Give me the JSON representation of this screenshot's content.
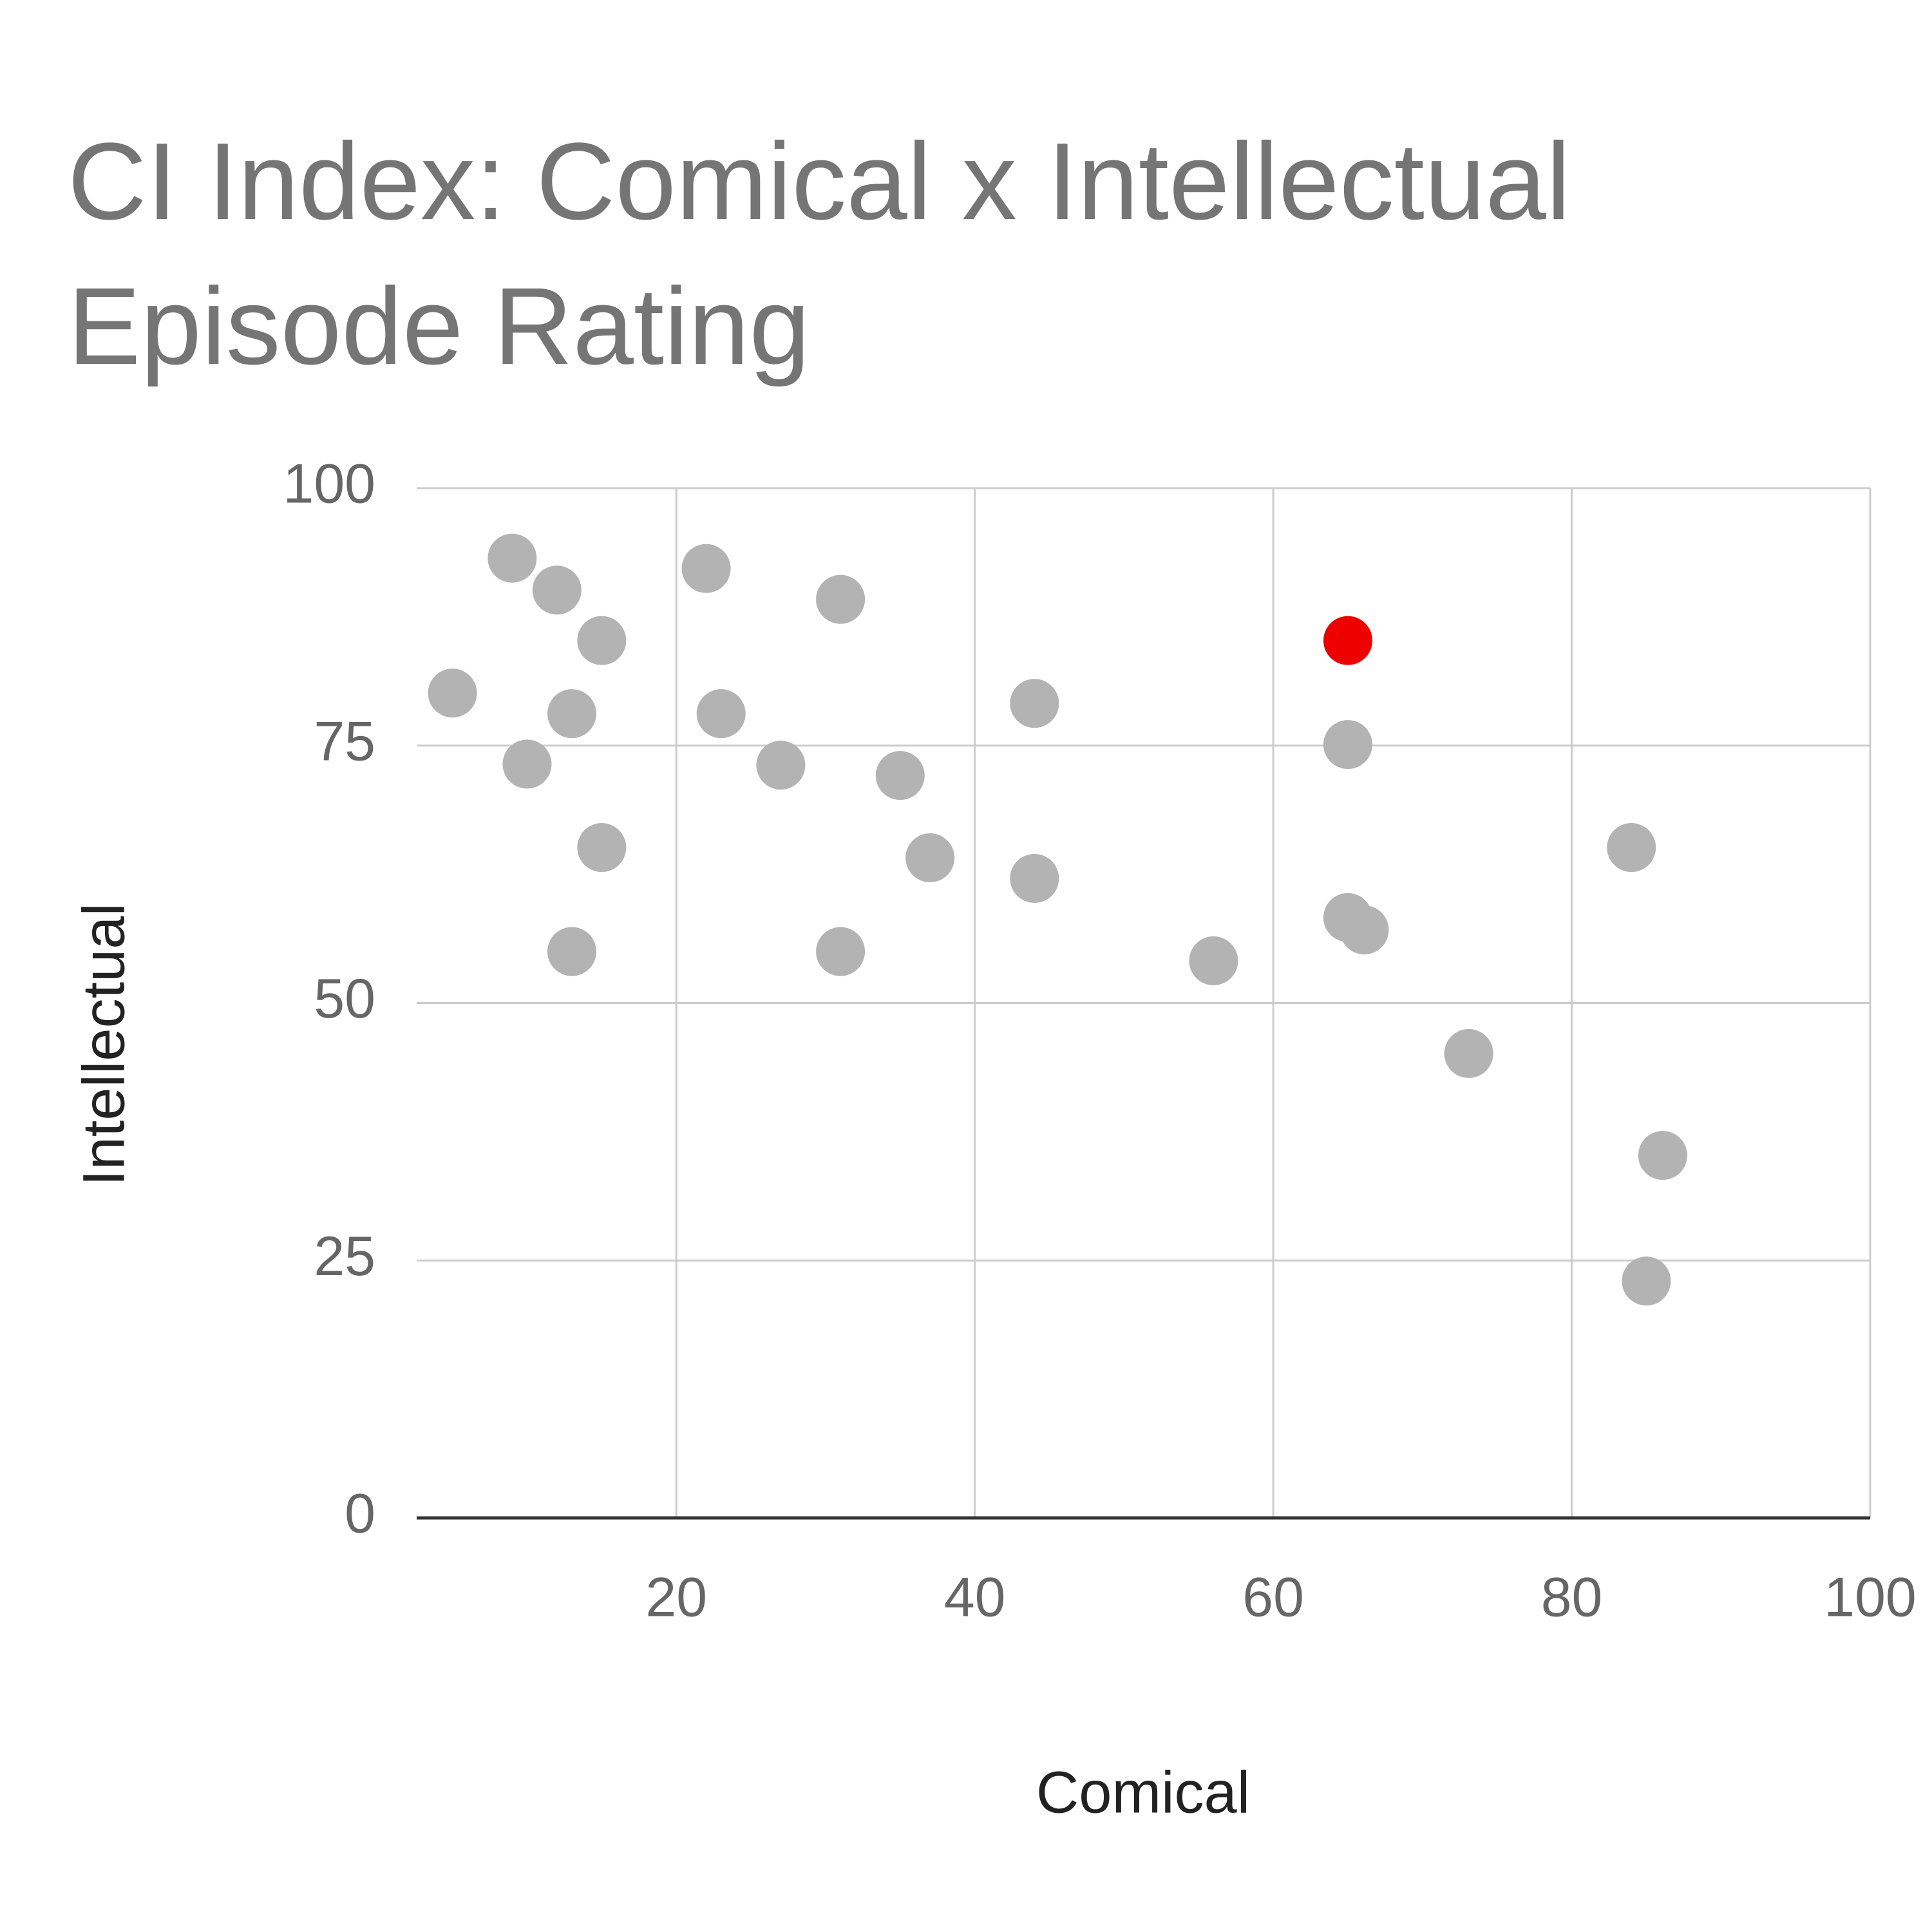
{
  "chart_data": {
    "type": "scatter",
    "title": "CI Index: Comical x Intellectual Episode Rating",
    "x_label": "Comical",
    "y_label": "Intellectual",
    "xlim": [
      2.6,
      100
    ],
    "ylim": [
      0,
      100
    ],
    "xticks": [
      20,
      40,
      60,
      80,
      100
    ],
    "yticks": [
      0,
      25,
      50,
      75,
      100
    ],
    "grid": true,
    "series": [
      {
        "color": "#b3b3b3",
        "x": [
          9.0,
          12.0,
          15.0,
          5.0,
          13.0,
          10.0,
          15.0,
          13.0,
          22.0,
          23.0,
          27.0,
          31.0,
          31.0,
          35.0,
          37.0,
          44.0,
          44.0,
          56.0,
          65.0,
          65.0,
          66.1,
          73.1,
          84.0,
          86.1,
          85.0
        ],
        "values": [
          93.2,
          90.1,
          85.2,
          80.1,
          78.1,
          73.2,
          65.1,
          55.0,
          92.2,
          78.1,
          73.1,
          89.2,
          55.0,
          72.1,
          64.1,
          79.1,
          62.1,
          54.1,
          75.1,
          58.3,
          57.1,
          45.1,
          65.1,
          35.2,
          23.0
        ]
      },
      {
        "color": "#ee0000",
        "x": [
          65.0
        ],
        "values": [
          85.2
        ]
      }
    ]
  }
}
